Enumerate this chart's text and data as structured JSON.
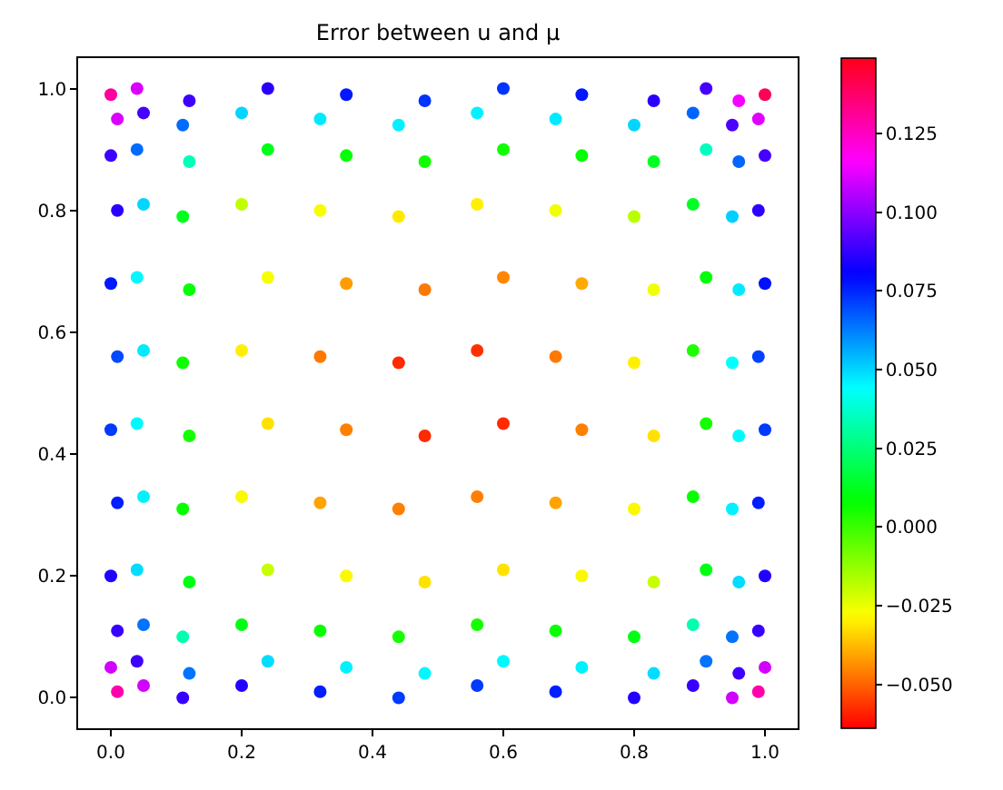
{
  "chart_data": {
    "type": "scatter",
    "title": "Error between u and μ",
    "x": [
      0.01,
      0.05,
      0.11,
      0.2,
      0.32,
      0.44,
      0.56,
      0.68,
      0.8,
      0.89,
      0.95,
      0.99,
      0,
      0.04,
      0.12,
      0.24,
      0.36,
      0.48,
      0.6,
      0.72,
      0.83,
      0.91,
      0.96,
      1,
      0.01,
      0.05,
      0.11,
      0.2,
      0.32,
      0.44,
      0.56,
      0.68,
      0.8,
      0.89,
      0.95,
      0.99,
      0,
      0.04,
      0.12,
      0.24,
      0.36,
      0.48,
      0.6,
      0.72,
      0.83,
      0.91,
      0.96,
      1,
      0.01,
      0.05,
      0.11,
      0.2,
      0.32,
      0.44,
      0.56,
      0.68,
      0.8,
      0.89,
      0.95,
      0.99,
      0,
      0.04,
      0.12,
      0.24,
      0.36,
      0.48,
      0.6,
      0.72,
      0.83,
      0.91,
      0.96,
      1,
      0.01,
      0.05,
      0.11,
      0.2,
      0.32,
      0.44,
      0.56,
      0.68,
      0.8,
      0.89,
      0.95,
      0.99,
      0,
      0.04,
      0.12,
      0.24,
      0.36,
      0.48,
      0.6,
      0.72,
      0.83,
      0.91,
      0.96,
      1,
      0.01,
      0.05,
      0.11,
      0.2,
      0.32,
      0.44,
      0.56,
      0.68,
      0.8,
      0.89,
      0.95,
      0.99,
      0,
      0.04,
      0.12,
      0.24,
      0.36,
      0.48,
      0.6,
      0.72,
      0.83,
      0.91,
      0.96,
      1,
      0.01,
      0.05,
      0.11,
      0.2,
      0.32,
      0.44,
      0.56,
      0.68,
      0.8,
      0.89,
      0.95,
      0.99,
      0,
      0.04,
      0.12,
      0.24,
      0.36,
      0.48,
      0.6,
      0.72,
      0.83,
      0.91,
      0.96,
      1
    ],
    "values": [
      0.01,
      0.02,
      0,
      0.02,
      0.01,
      0,
      0.02,
      0.01,
      0,
      0.02,
      0,
      0.01,
      0.05,
      0.06,
      0.04,
      0.06,
      0.05,
      0.04,
      0.06,
      0.05,
      0.04,
      0.06,
      0.04,
      0.05,
      0.11,
      0.12,
      0.1,
      0.12,
      0.11,
      0.1,
      0.12,
      0.11,
      0.1,
      0.12,
      0.1,
      0.11,
      0.2,
      0.21,
      0.19,
      0.21,
      0.2,
      0.19,
      0.21,
      0.2,
      0.19,
      0.21,
      0.19,
      0.2,
      0.32,
      0.33,
      0.31,
      0.33,
      0.32,
      0.31,
      0.33,
      0.32,
      0.31,
      0.33,
      0.31,
      0.32,
      0.44,
      0.45,
      0.43,
      0.45,
      0.44,
      0.43,
      0.45,
      0.44,
      0.43,
      0.45,
      0.43,
      0.44,
      0.56,
      0.57,
      0.55,
      0.57,
      0.56,
      0.55,
      0.57,
      0.56,
      0.55,
      0.57,
      0.55,
      0.56,
      0.68,
      0.69,
      0.67,
      0.69,
      0.68,
      0.67,
      0.69,
      0.68,
      0.67,
      0.69,
      0.67,
      0.68,
      0.8,
      0.81,
      0.79,
      0.81,
      0.8,
      0.79,
      0.81,
      0.8,
      0.79,
      0.81,
      0.79,
      0.8,
      0.89,
      0.9,
      0.88,
      0.9,
      0.89,
      0.88,
      0.9,
      0.89,
      0.88,
      0.9,
      0.88,
      0.89,
      0.95,
      0.96,
      0.94,
      0.96,
      0.95,
      0.94,
      0.96,
      0.95,
      0.94,
      0.96,
      0.94,
      0.95,
      0.99,
      1,
      0.98,
      1,
      0.99,
      0.98,
      1,
      0.99,
      0.98,
      1,
      0.98,
      0.99
    ],
    "cvalues": [
      0.128,
      0.11,
      0.088,
      0.085,
      0.076,
      0.072,
      0.072,
      0.076,
      0.085,
      0.088,
      0.11,
      0.128,
      0.11,
      0.089,
      0.064,
      0.049,
      0.046,
      0.045,
      0.045,
      0.046,
      0.049,
      0.064,
      0.089,
      0.11,
      0.088,
      0.064,
      0.033,
      0.011,
      0.007,
      0.005,
      0.005,
      0.007,
      0.011,
      0.033,
      0.064,
      0.088,
      0.085,
      0.049,
      0.011,
      -0.02,
      -0.028,
      -0.032,
      -0.032,
      -0.028,
      -0.02,
      0.011,
      0.049,
      0.085,
      0.076,
      0.046,
      0.007,
      -0.028,
      -0.041,
      -0.046,
      -0.046,
      -0.041,
      -0.028,
      0.007,
      0.046,
      0.076,
      0.072,
      0.045,
      0.005,
      -0.032,
      -0.046,
      -0.058,
      -0.058,
      -0.046,
      -0.032,
      0.005,
      0.045,
      0.072,
      0.07,
      0.047,
      0.006,
      -0.03,
      -0.047,
      -0.058,
      -0.057,
      -0.047,
      -0.03,
      0.004,
      0.044,
      0.071,
      0.077,
      0.045,
      0.008,
      -0.027,
      -0.042,
      -0.047,
      -0.045,
      -0.04,
      -0.026,
      0.009,
      0.047,
      0.078,
      0.086,
      0.05,
      0.012,
      -0.019,
      -0.027,
      -0.031,
      -0.03,
      -0.026,
      -0.018,
      0.013,
      0.051,
      0.087,
      0.089,
      0.065,
      0.034,
      0.012,
      0.008,
      0.006,
      0.006,
      0.008,
      0.013,
      0.035,
      0.066,
      0.09,
      0.111,
      0.09,
      0.065,
      0.05,
      0.047,
      0.046,
      0.046,
      0.047,
      0.05,
      0.066,
      0.091,
      0.112,
      0.13,
      0.111,
      0.089,
      0.086,
      0.077,
      0.073,
      0.073,
      0.077,
      0.086,
      0.09,
      0.115,
      0.14
    ],
    "xlim": [
      -0.05,
      1.05
    ],
    "ylim": [
      -0.05,
      1.05
    ],
    "xticks": [
      {
        "value": 0,
        "label": "0.0"
      },
      0.2,
      0.4,
      0.6,
      0.8,
      {
        "value": 1,
        "label": "1.0"
      }
    ],
    "yticks": [
      {
        "value": 0,
        "label": "0.0"
      },
      0.2,
      0.4,
      0.6,
      0.8,
      {
        "value": 1,
        "label": "1.0"
      }
    ],
    "clim": [
      -0.064,
      0.149
    ],
    "cticks": [
      {
        "value": -0.05,
        "label": "−0.050"
      },
      {
        "value": -0.025,
        "label": "−0.025"
      },
      {
        "value": 0,
        "label": "0.000"
      },
      {
        "value": 0.025,
        "label": "0.025"
      },
      {
        "value": 0.05,
        "label": "0.050"
      },
      {
        "value": 0.075,
        "label": "0.075"
      },
      {
        "value": 0.1,
        "label": "0.100"
      },
      {
        "value": 0.125,
        "label": "0.125"
      }
    ],
    "marker": "circle"
  }
}
